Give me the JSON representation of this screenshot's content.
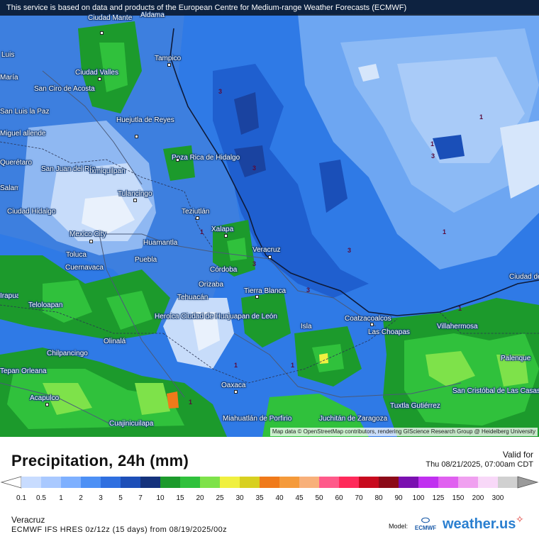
{
  "banner": "This service is based on data and products of the European Centre for Medium-range Weather Forecasts (ECMWF)",
  "attribution": "Map data © OpenStreetMap contributors, rendering GIScience Research Group @ Heidelberg University",
  "cities": [
    {
      "name": "Aldama",
      "id": "aldama"
    },
    {
      "name": "Ciudad Mante",
      "id": "ciudad-mante"
    },
    {
      "name": "Tampico",
      "id": "tampico"
    },
    {
      "name": "Luis",
      "id": "luis"
    },
    {
      "name": "María",
      "id": "maria"
    },
    {
      "name": "Ciudad Valles",
      "id": "ciudad-valles"
    },
    {
      "name": "San Ciro de Acosta",
      "id": "san-ciro"
    },
    {
      "name": "San Luis la Paz",
      "id": "san-luis-la-paz"
    },
    {
      "name": "Huejutla de Reyes",
      "id": "huejutla"
    },
    {
      "name": "Miguel allende",
      "id": "miguel-allende"
    },
    {
      "name": "Poza Rica de Hidalgo",
      "id": "poza-rica"
    },
    {
      "name": "Querétaro",
      "id": "queretaro"
    },
    {
      "name": "San Juan del Río",
      "id": "san-juan-del-rio"
    },
    {
      "name": "Ixmiquilpan",
      "id": "ixmiquilpan"
    },
    {
      "name": "Tulancingo",
      "id": "tulancingo"
    },
    {
      "name": "Ciudad Hidalgo",
      "id": "ciudad-hidalgo"
    },
    {
      "name": "Teziutlán",
      "id": "teziutlan"
    },
    {
      "name": "Xalapa",
      "id": "xalapa"
    },
    {
      "name": "Mexico City",
      "id": "mexico-city"
    },
    {
      "name": "Huamantla",
      "id": "huamantla"
    },
    {
      "name": "Veracruz",
      "id": "veracruz"
    },
    {
      "name": "Toluca",
      "id": "toluca"
    },
    {
      "name": "Puebla",
      "id": "puebla"
    },
    {
      "name": "Cuernavaca",
      "id": "cuernavaca"
    },
    {
      "name": "Córdoba",
      "id": "cordoba"
    },
    {
      "name": "Orizaba",
      "id": "orizaba"
    },
    {
      "name": "Tierra Blanca",
      "id": "tierra-blanca"
    },
    {
      "name": "Tehuacán",
      "id": "tehuacan"
    },
    {
      "name": "Teloloapan",
      "id": "teloloapan"
    },
    {
      "name": "Heroica Ciudad de Huajuapan de León",
      "id": "huajuapan"
    },
    {
      "name": "Olinalá",
      "id": "olinala"
    },
    {
      "name": "Isla",
      "id": "isla"
    },
    {
      "name": "Coatzacoalcos",
      "id": "coatzacoalcos"
    },
    {
      "name": "Las Choapas",
      "id": "las-choapas"
    },
    {
      "name": "Villahermosa",
      "id": "villahermosa"
    },
    {
      "name": "Ciudad del Carmen",
      "id": "ciudad-del-carmen"
    },
    {
      "name": "Chilpancingo",
      "id": "chilpancingo"
    },
    {
      "name": "Palenque",
      "id": "palenque"
    },
    {
      "name": "Oaxaca",
      "id": "oaxaca"
    },
    {
      "name": "San Cristóbal de Las Casas",
      "id": "san-cristobal"
    },
    {
      "name": "Acapulco",
      "id": "acapulco"
    },
    {
      "name": "Tuxtla Gutiérrez",
      "id": "tuxtla"
    },
    {
      "name": "Miahuatlán de Porfirio",
      "id": "miahuatlan"
    },
    {
      "name": "Juchitán de Zaragoza",
      "id": "juchitan"
    },
    {
      "name": "Cuajinicuilapa",
      "id": "cuajinicuilapa"
    },
    {
      "name": "Irapuato",
      "id": "irapuato"
    },
    {
      "name": "Salamanca",
      "id": "salamanca"
    },
    {
      "name": "Tepan Orleana",
      "id": "tepan"
    }
  ],
  "contour_labels": [
    "3",
    "3",
    "3",
    "1",
    "1",
    "3",
    "3",
    "1",
    "1",
    "1",
    "3",
    "1",
    "1",
    "1"
  ],
  "legend": {
    "title": "Precipitation, 24h (mm)",
    "valid_label": "Valid for",
    "valid_time": "Thu 08/21/2025, 07:00am CDT",
    "ticks": [
      "0.1",
      "0.5",
      "1",
      "2",
      "3",
      "5",
      "7",
      "10",
      "15",
      "20",
      "25",
      "30",
      "35",
      "40",
      "45",
      "50",
      "60",
      "70",
      "80",
      "90",
      "100",
      "125",
      "150",
      "200",
      "300"
    ],
    "colors": [
      "#c8dcff",
      "#a9c9ff",
      "#7eb0ff",
      "#4d90f5",
      "#2f6fe0",
      "#1d4fb8",
      "#14327c",
      "#1c9a2c",
      "#30c13c",
      "#7ee24a",
      "#f0f040",
      "#d8d020",
      "#f07a1a",
      "#f59a3a",
      "#f8b07a",
      "#ff5a8a",
      "#ff2a5a",
      "#c80a1e",
      "#8c0a18",
      "#7a10b0",
      "#c030f0",
      "#e060f0",
      "#f0a0f0",
      "#f8d8f8",
      "#d0d0d0"
    ]
  },
  "footer": {
    "region": "Veracruz",
    "model_run": "ECMWF IFS HRES 0z/12z (15 days) from 08/19/2025/00z",
    "model_label": "Model:",
    "ecmwf_logo_text": "ECMWF",
    "brand": "weather.us"
  }
}
